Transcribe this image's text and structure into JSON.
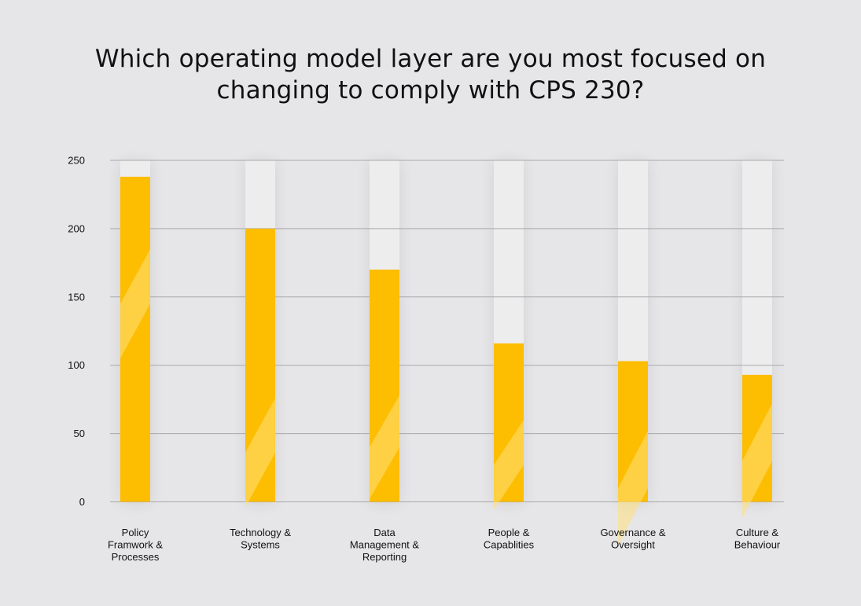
{
  "chart_data": {
    "type": "bar",
    "title_lines": [
      "Which operating model layer are you most focused on",
      "changing to comply with CPS 230?"
    ],
    "categories": [
      [
        "Policy",
        "Framwork &",
        "Processes"
      ],
      [
        "Technology &",
        "Systems"
      ],
      [
        "Data",
        "Management &",
        "Reporting"
      ],
      [
        "People &",
        "Capablities"
      ],
      [
        "Governance &",
        "Oversight"
      ],
      [
        "Culture &",
        "Behaviour"
      ]
    ],
    "values": [
      238,
      200,
      170,
      116,
      103,
      93
    ],
    "ylim": [
      0,
      250
    ],
    "yticks": [
      0,
      50,
      100,
      150,
      200,
      250
    ],
    "xlabel": "",
    "ylabel": "",
    "grid": true,
    "colors": {
      "bar": "#fdbd00",
      "bar_track": "#ededee",
      "stripe": "#ffe07a",
      "grid": "#a9a9ab",
      "background": "#e6e6e8",
      "text": "#111111"
    }
  }
}
